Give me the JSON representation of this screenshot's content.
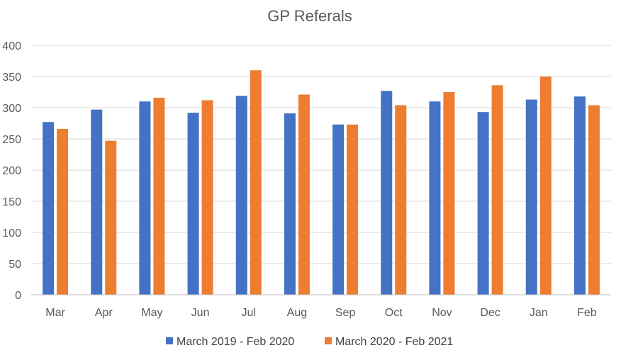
{
  "chart_data": {
    "type": "bar",
    "title": "GP Referals",
    "xlabel": "",
    "ylabel": "",
    "ylim": [
      0,
      400
    ],
    "yticks": [
      0,
      50,
      100,
      150,
      200,
      250,
      300,
      350,
      400
    ],
    "grid": true,
    "legend_position": "bottom",
    "categories": [
      "Mar",
      "Apr",
      "May",
      "Jun",
      "Jul",
      "Aug",
      "Sep",
      "Oct",
      "Nov",
      "Dec",
      "Jan",
      "Feb"
    ],
    "series": [
      {
        "name": "March 2019 - Feb 2020",
        "color": "#4472c4",
        "values": [
          277,
          297,
          310,
          292,
          319,
          291,
          273,
          327,
          310,
          293,
          313,
          318
        ]
      },
      {
        "name": "March 2020 - Feb 2021",
        "color": "#ed7d31",
        "values": [
          266,
          247,
          316,
          312,
          360,
          321,
          273,
          304,
          325,
          336,
          350,
          304
        ]
      }
    ]
  }
}
